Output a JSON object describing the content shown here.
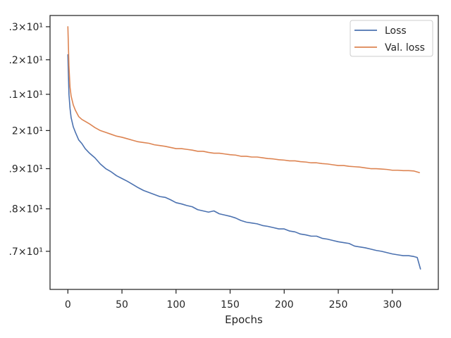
{
  "chart_data": {
    "type": "line",
    "title": "",
    "xlabel": "Epochs",
    "ylabel": "",
    "yscale": "log",
    "xlim": [
      -16.5,
      342.5
    ],
    "ylim": [
      16.15,
      23.35
    ],
    "grid": false,
    "legend_position": "top-right",
    "x_ticks": [
      {
        "value": 0,
        "label": "0"
      },
      {
        "value": 50,
        "label": "50"
      },
      {
        "value": 100,
        "label": "100"
      },
      {
        "value": 150,
        "label": "150"
      },
      {
        "value": 200,
        "label": "200"
      },
      {
        "value": 250,
        "label": "250"
      },
      {
        "value": 300,
        "label": "300"
      }
    ],
    "y_ticks": [
      {
        "value": 17,
        "label": ".7×10¹"
      },
      {
        "value": 18,
        "label": ".8×10¹"
      },
      {
        "value": 19,
        "label": ".9×10¹"
      },
      {
        "value": 20,
        "label": "2×10¹"
      },
      {
        "value": 21,
        "label": ".1×10¹"
      },
      {
        "value": 22,
        "label": ".2×10¹"
      },
      {
        "value": 23,
        "label": ".3×10¹"
      }
    ],
    "series": [
      {
        "name": "Loss",
        "color": "#4c72b0",
        "points": [
          [
            0,
            22.15
          ],
          [
            1,
            21.0
          ],
          [
            2,
            20.6
          ],
          [
            3,
            20.35
          ],
          [
            5,
            20.1
          ],
          [
            7,
            19.95
          ],
          [
            10,
            19.75
          ],
          [
            13,
            19.65
          ],
          [
            16,
            19.52
          ],
          [
            20,
            19.4
          ],
          [
            25,
            19.28
          ],
          [
            30,
            19.12
          ],
          [
            35,
            19.0
          ],
          [
            40,
            18.92
          ],
          [
            45,
            18.82
          ],
          [
            50,
            18.75
          ],
          [
            55,
            18.68
          ],
          [
            60,
            18.6
          ],
          [
            65,
            18.52
          ],
          [
            70,
            18.45
          ],
          [
            75,
            18.4
          ],
          [
            80,
            18.35
          ],
          [
            85,
            18.3
          ],
          [
            90,
            18.28
          ],
          [
            95,
            18.22
          ],
          [
            100,
            18.15
          ],
          [
            105,
            18.12
          ],
          [
            110,
            18.08
          ],
          [
            115,
            18.05
          ],
          [
            120,
            17.98
          ],
          [
            125,
            17.95
          ],
          [
            130,
            17.92
          ],
          [
            135,
            17.95
          ],
          [
            140,
            17.88
          ],
          [
            145,
            17.85
          ],
          [
            150,
            17.82
          ],
          [
            155,
            17.78
          ],
          [
            160,
            17.72
          ],
          [
            165,
            17.68
          ],
          [
            170,
            17.66
          ],
          [
            175,
            17.64
          ],
          [
            180,
            17.6
          ],
          [
            185,
            17.58
          ],
          [
            190,
            17.55
          ],
          [
            195,
            17.52
          ],
          [
            200,
            17.52
          ],
          [
            205,
            17.47
          ],
          [
            210,
            17.45
          ],
          [
            215,
            17.4
          ],
          [
            220,
            17.38
          ],
          [
            225,
            17.35
          ],
          [
            230,
            17.35
          ],
          [
            235,
            17.3
          ],
          [
            240,
            17.28
          ],
          [
            245,
            17.25
          ],
          [
            250,
            17.22
          ],
          [
            255,
            17.2
          ],
          [
            260,
            17.18
          ],
          [
            265,
            17.12
          ],
          [
            270,
            17.1
          ],
          [
            275,
            17.08
          ],
          [
            280,
            17.05
          ],
          [
            285,
            17.02
          ],
          [
            290,
            17.0
          ],
          [
            295,
            16.97
          ],
          [
            300,
            16.94
          ],
          [
            305,
            16.92
          ],
          [
            310,
            16.9
          ],
          [
            315,
            16.9
          ],
          [
            320,
            16.88
          ],
          [
            323,
            16.86
          ],
          [
            326,
            16.6
          ]
        ]
      },
      {
        "name": "Val. loss",
        "color": "#dd8452",
        "points": [
          [
            0,
            23.0
          ],
          [
            1,
            21.8
          ],
          [
            2,
            21.2
          ],
          [
            3,
            20.95
          ],
          [
            5,
            20.7
          ],
          [
            7,
            20.55
          ],
          [
            10,
            20.38
          ],
          [
            13,
            20.3
          ],
          [
            16,
            20.25
          ],
          [
            20,
            20.18
          ],
          [
            25,
            20.08
          ],
          [
            30,
            20.0
          ],
          [
            35,
            19.95
          ],
          [
            40,
            19.9
          ],
          [
            45,
            19.85
          ],
          [
            50,
            19.82
          ],
          [
            55,
            19.78
          ],
          [
            60,
            19.74
          ],
          [
            65,
            19.7
          ],
          [
            70,
            19.68
          ],
          [
            75,
            19.66
          ],
          [
            80,
            19.62
          ],
          [
            85,
            19.6
          ],
          [
            90,
            19.58
          ],
          [
            95,
            19.55
          ],
          [
            100,
            19.52
          ],
          [
            105,
            19.52
          ],
          [
            110,
            19.5
          ],
          [
            115,
            19.48
          ],
          [
            120,
            19.45
          ],
          [
            125,
            19.45
          ],
          [
            130,
            19.42
          ],
          [
            135,
            19.4
          ],
          [
            140,
            19.4
          ],
          [
            145,
            19.38
          ],
          [
            150,
            19.36
          ],
          [
            155,
            19.35
          ],
          [
            160,
            19.32
          ],
          [
            165,
            19.32
          ],
          [
            170,
            19.3
          ],
          [
            175,
            19.3
          ],
          [
            180,
            19.28
          ],
          [
            185,
            19.26
          ],
          [
            190,
            19.25
          ],
          [
            195,
            19.23
          ],
          [
            200,
            19.22
          ],
          [
            205,
            19.2
          ],
          [
            210,
            19.2
          ],
          [
            215,
            19.18
          ],
          [
            220,
            19.17
          ],
          [
            225,
            19.15
          ],
          [
            230,
            19.15
          ],
          [
            235,
            19.13
          ],
          [
            240,
            19.12
          ],
          [
            245,
            19.1
          ],
          [
            250,
            19.08
          ],
          [
            255,
            19.08
          ],
          [
            260,
            19.06
          ],
          [
            265,
            19.05
          ],
          [
            270,
            19.04
          ],
          [
            275,
            19.02
          ],
          [
            280,
            19.0
          ],
          [
            285,
            19.0
          ],
          [
            290,
            18.99
          ],
          [
            295,
            18.98
          ],
          [
            300,
            18.96
          ],
          [
            305,
            18.96
          ],
          [
            310,
            18.95
          ],
          [
            315,
            18.95
          ],
          [
            320,
            18.94
          ],
          [
            325,
            18.9
          ]
        ]
      }
    ]
  }
}
